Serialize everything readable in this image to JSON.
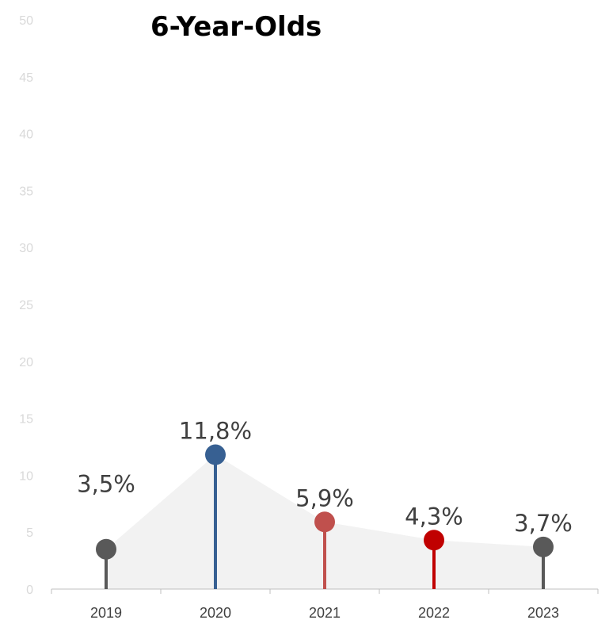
{
  "chart_data": {
    "type": "line",
    "title": "6-Year-Olds",
    "categories": [
      "2019",
      "2020",
      "2021",
      "2022",
      "2023"
    ],
    "series": [
      {
        "values": [
          3.5,
          11.8,
          5.9,
          4.3,
          3.7
        ],
        "labels": [
          "3,5%",
          "11,8%",
          "5,9%",
          "4,3%",
          "3,7%"
        ],
        "colors": [
          "#595959",
          "#376092",
          "#c0504d",
          "#c00000",
          "#595959"
        ]
      }
    ],
    "yticks": [
      "0",
      "5",
      "10",
      "15",
      "20",
      "25",
      "30",
      "35",
      "40",
      "45",
      "50"
    ],
    "ylim": [
      0,
      50
    ],
    "area_color": "#f2f2f2",
    "grid": false
  }
}
